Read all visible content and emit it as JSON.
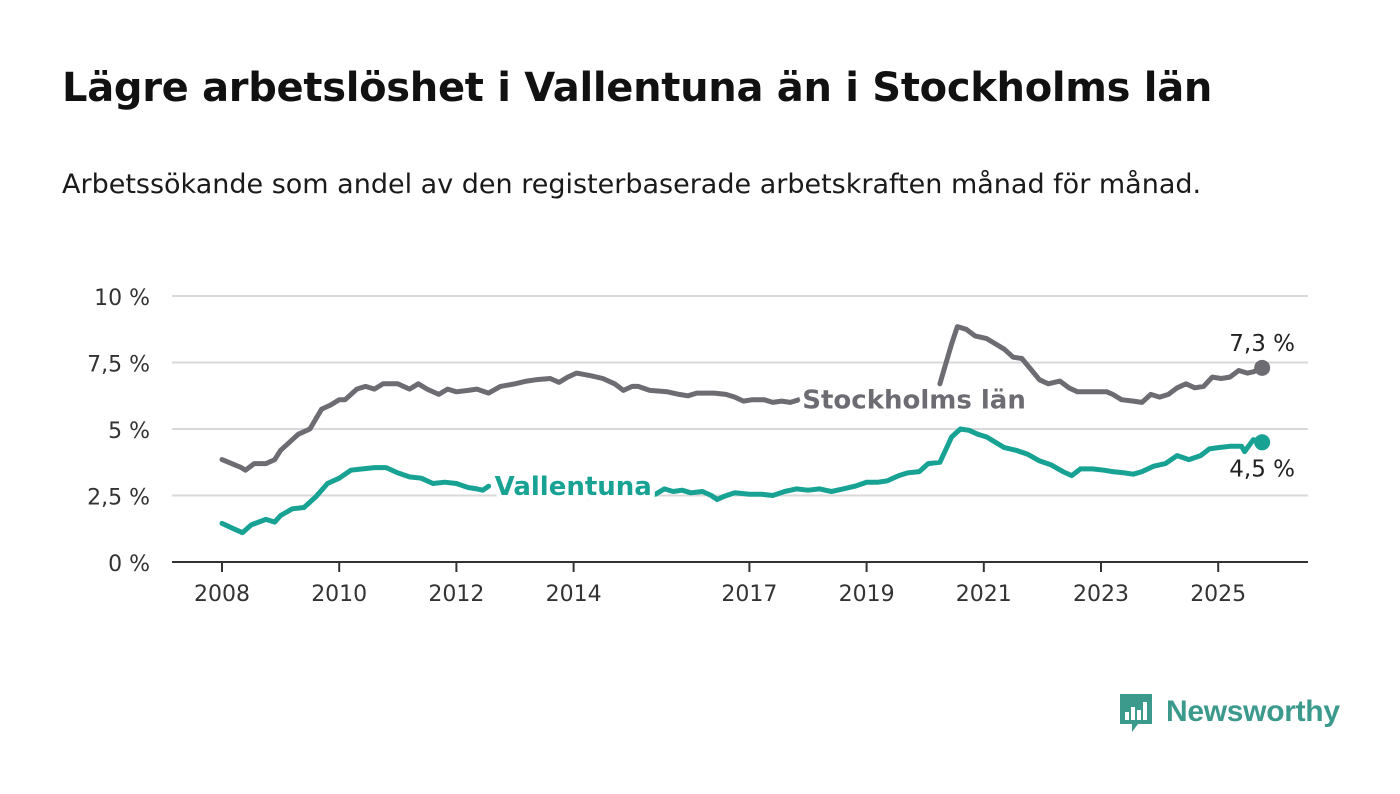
{
  "header": {
    "title": "Lägre arbetslöshet i Vallentuna än i Stockholms län",
    "subtitle": "Arbetssökande som andel av den registerbaserade arbetskraften månad för månad."
  },
  "brand": {
    "name": "Newsworthy",
    "icon": "newsworthy-logo-icon",
    "color": "#3b9a8c"
  },
  "chart_data": {
    "type": "line",
    "title": "Lägre arbetslöshet i Vallentuna än i Stockholms län",
    "subtitle": "Arbetssökande som andel av den registerbaserade arbetskraften månad för månad.",
    "xlim": [
      2008,
      2025.75
    ],
    "ylim": [
      0,
      10
    ],
    "grid": true,
    "x_ticks": [
      {
        "value": 2008,
        "label": "2008"
      },
      {
        "value": 2010,
        "label": "2010"
      },
      {
        "value": 2012,
        "label": "2012"
      },
      {
        "value": 2014,
        "label": "2014"
      },
      {
        "value": 2017,
        "label": "2017"
      },
      {
        "value": 2019,
        "label": "2019"
      },
      {
        "value": 2021,
        "label": "2021"
      },
      {
        "value": 2023,
        "label": "2023"
      },
      {
        "value": 2025,
        "label": "2025"
      }
    ],
    "y_ticks": [
      {
        "value": 0,
        "label": "0 %"
      },
      {
        "value": 2.5,
        "label": "2,5 %"
      },
      {
        "value": 5,
        "label": "5 %"
      },
      {
        "value": 7.5,
        "label": "7,5 %"
      },
      {
        "value": 10,
        "label": "10 %"
      }
    ],
    "series": [
      {
        "name": "Stockholms län",
        "color": "#6e6c73",
        "label_at": [
          2017.8,
          6.1
        ],
        "end_label": "7,3 %",
        "points": [
          [
            2008.0,
            3.85
          ],
          [
            2008.33,
            3.55
          ],
          [
            2008.4,
            3.45
          ],
          [
            2008.55,
            3.7
          ],
          [
            2008.75,
            3.7
          ],
          [
            2008.9,
            3.85
          ],
          [
            2009.0,
            4.2
          ],
          [
            2009.3,
            4.8
          ],
          [
            2009.5,
            5.0
          ],
          [
            2009.7,
            5.75
          ],
          [
            2009.85,
            5.9
          ],
          [
            2010.0,
            6.1
          ],
          [
            2010.1,
            6.1
          ],
          [
            2010.3,
            6.5
          ],
          [
            2010.45,
            6.6
          ],
          [
            2010.6,
            6.5
          ],
          [
            2010.75,
            6.7
          ],
          [
            2011.0,
            6.7
          ],
          [
            2011.2,
            6.5
          ],
          [
            2011.35,
            6.7
          ],
          [
            2011.5,
            6.5
          ],
          [
            2011.7,
            6.3
          ],
          [
            2011.85,
            6.5
          ],
          [
            2012.0,
            6.4
          ],
          [
            2012.2,
            6.45
          ],
          [
            2012.35,
            6.5
          ],
          [
            2012.55,
            6.35
          ],
          [
            2012.75,
            6.6
          ],
          [
            2013.0,
            6.7
          ],
          [
            2013.2,
            6.8
          ],
          [
            2013.35,
            6.85
          ],
          [
            2013.6,
            6.9
          ],
          [
            2013.75,
            6.75
          ],
          [
            2013.9,
            6.95
          ],
          [
            2014.05,
            7.1
          ],
          [
            2014.3,
            7.0
          ],
          [
            2014.5,
            6.9
          ],
          [
            2014.7,
            6.7
          ],
          [
            2014.85,
            6.45
          ],
          [
            2015.0,
            6.6
          ],
          [
            2015.1,
            6.6
          ],
          [
            2015.3,
            6.45
          ],
          [
            2015.6,
            6.4
          ],
          [
            2015.8,
            6.3
          ],
          [
            2015.95,
            6.25
          ],
          [
            2016.1,
            6.35
          ],
          [
            2016.4,
            6.35
          ],
          [
            2016.6,
            6.3
          ],
          [
            2016.75,
            6.2
          ],
          [
            2016.9,
            6.05
          ],
          [
            2017.05,
            6.1
          ],
          [
            2017.25,
            6.1
          ],
          [
            2017.4,
            6.0
          ],
          [
            2017.55,
            6.05
          ],
          [
            2017.7,
            6.0
          ],
          [
            2017.85,
            6.1
          ],
          [
            2017.95,
            6.1
          ]
        ],
        "points_2": [
          [
            2020.25,
            6.7
          ],
          [
            2020.45,
            8.2
          ],
          [
            2020.55,
            8.85
          ],
          [
            2020.7,
            8.75
          ],
          [
            2020.85,
            8.5
          ],
          [
            2021.05,
            8.4
          ],
          [
            2021.2,
            8.2
          ],
          [
            2021.35,
            8.0
          ],
          [
            2021.5,
            7.7
          ],
          [
            2021.65,
            7.65
          ],
          [
            2021.8,
            7.25
          ],
          [
            2021.95,
            6.85
          ],
          [
            2022.1,
            6.7
          ],
          [
            2022.3,
            6.8
          ],
          [
            2022.45,
            6.55
          ],
          [
            2022.6,
            6.4
          ],
          [
            2022.75,
            6.4
          ],
          [
            2022.9,
            6.4
          ],
          [
            2023.1,
            6.4
          ],
          [
            2023.2,
            6.3
          ],
          [
            2023.35,
            6.1
          ],
          [
            2023.55,
            6.05
          ],
          [
            2023.7,
            6.0
          ],
          [
            2023.85,
            6.3
          ],
          [
            2024.0,
            6.2
          ],
          [
            2024.15,
            6.3
          ],
          [
            2024.3,
            6.55
          ],
          [
            2024.45,
            6.7
          ],
          [
            2024.6,
            6.55
          ],
          [
            2024.75,
            6.6
          ],
          [
            2024.9,
            6.95
          ],
          [
            2025.05,
            6.9
          ],
          [
            2025.2,
            6.95
          ],
          [
            2025.35,
            7.2
          ],
          [
            2025.5,
            7.1
          ],
          [
            2025.6,
            7.15
          ],
          [
            2025.75,
            7.3
          ]
        ]
      },
      {
        "name": "Vallentuna",
        "color": "#17a294",
        "label_at": [
          2012.55,
          2.85
        ],
        "end_label": "4,5 %",
        "points": [
          [
            2008.0,
            1.45
          ],
          [
            2008.2,
            1.25
          ],
          [
            2008.35,
            1.1
          ],
          [
            2008.5,
            1.4
          ],
          [
            2008.75,
            1.6
          ],
          [
            2008.9,
            1.5
          ],
          [
            2009.0,
            1.75
          ],
          [
            2009.2,
            2.0
          ],
          [
            2009.4,
            2.05
          ],
          [
            2009.6,
            2.45
          ],
          [
            2009.8,
            2.95
          ],
          [
            2010.0,
            3.15
          ],
          [
            2010.2,
            3.45
          ],
          [
            2010.4,
            3.5
          ],
          [
            2010.6,
            3.55
          ],
          [
            2010.8,
            3.55
          ],
          [
            2011.0,
            3.35
          ],
          [
            2011.2,
            3.2
          ],
          [
            2011.4,
            3.15
          ],
          [
            2011.6,
            2.95
          ],
          [
            2011.8,
            3.0
          ],
          [
            2012.0,
            2.95
          ],
          [
            2012.2,
            2.8
          ],
          [
            2012.35,
            2.75
          ],
          [
            2012.45,
            2.7
          ],
          [
            2012.55,
            2.85
          ]
        ],
        "points_2": [
          [
            2014.1,
            2.8
          ],
          [
            2014.25,
            2.45
          ],
          [
            2014.4,
            2.75
          ],
          [
            2014.6,
            2.65
          ],
          [
            2014.85,
            2.75
          ],
          [
            2015.0,
            2.55
          ],
          [
            2015.2,
            2.5
          ],
          [
            2015.4,
            2.55
          ],
          [
            2015.55,
            2.75
          ],
          [
            2015.7,
            2.65
          ],
          [
            2015.85,
            2.7
          ],
          [
            2016.0,
            2.6
          ],
          [
            2016.2,
            2.65
          ],
          [
            2016.35,
            2.5
          ],
          [
            2016.45,
            2.35
          ],
          [
            2016.55,
            2.45
          ],
          [
            2016.75,
            2.6
          ],
          [
            2017.0,
            2.55
          ],
          [
            2017.2,
            2.55
          ],
          [
            2017.4,
            2.5
          ],
          [
            2017.6,
            2.65
          ],
          [
            2017.8,
            2.75
          ],
          [
            2018.0,
            2.7
          ],
          [
            2018.2,
            2.75
          ],
          [
            2018.4,
            2.65
          ],
          [
            2018.6,
            2.75
          ],
          [
            2018.8,
            2.85
          ],
          [
            2019.0,
            3.0
          ],
          [
            2019.2,
            3.0
          ],
          [
            2019.35,
            3.05
          ],
          [
            2019.55,
            3.25
          ],
          [
            2019.7,
            3.35
          ],
          [
            2019.9,
            3.4
          ],
          [
            2020.05,
            3.7
          ],
          [
            2020.25,
            3.75
          ],
          [
            2020.45,
            4.7
          ],
          [
            2020.6,
            5.0
          ],
          [
            2020.75,
            4.95
          ],
          [
            2020.9,
            4.8
          ],
          [
            2021.05,
            4.7
          ],
          [
            2021.2,
            4.5
          ],
          [
            2021.35,
            4.3
          ],
          [
            2021.55,
            4.2
          ],
          [
            2021.75,
            4.05
          ],
          [
            2021.95,
            3.8
          ],
          [
            2022.15,
            3.65
          ],
          [
            2022.35,
            3.4
          ],
          [
            2022.5,
            3.25
          ],
          [
            2022.65,
            3.5
          ],
          [
            2022.85,
            3.5
          ],
          [
            2023.05,
            3.45
          ],
          [
            2023.2,
            3.4
          ],
          [
            2023.4,
            3.35
          ],
          [
            2023.55,
            3.3
          ],
          [
            2023.7,
            3.4
          ],
          [
            2023.9,
            3.6
          ],
          [
            2024.1,
            3.7
          ],
          [
            2024.3,
            4.0
          ],
          [
            2024.5,
            3.85
          ],
          [
            2024.7,
            4.0
          ],
          [
            2024.85,
            4.25
          ],
          [
            2025.0,
            4.3
          ],
          [
            2025.2,
            4.35
          ],
          [
            2025.4,
            4.35
          ],
          [
            2025.45,
            4.15
          ],
          [
            2025.5,
            4.3
          ],
          [
            2025.6,
            4.6
          ],
          [
            2025.75,
            4.5
          ]
        ]
      }
    ]
  }
}
